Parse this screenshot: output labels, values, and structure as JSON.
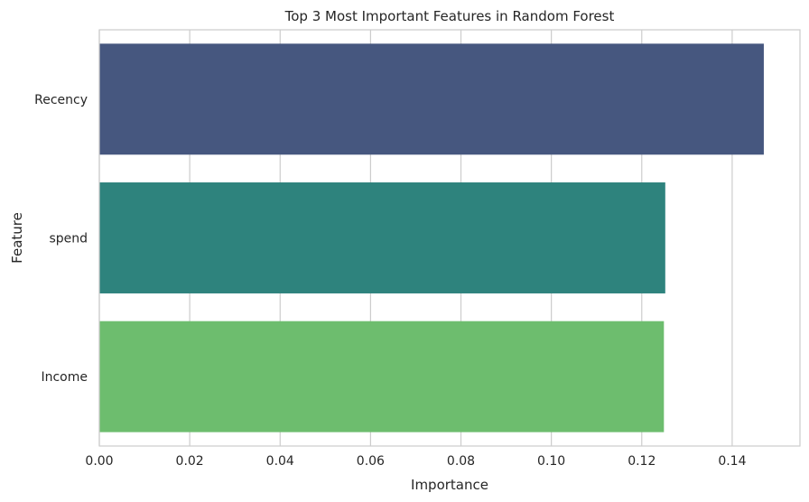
{
  "chart_data": {
    "type": "bar",
    "orientation": "horizontal",
    "title": "Top 3 Most Important Features in Random Forest",
    "xlabel": "Importance",
    "ylabel": "Feature",
    "categories": [
      "Recency",
      "spend",
      "Income"
    ],
    "values": [
      0.147,
      0.1252,
      0.1249
    ],
    "colors": [
      "#46577f",
      "#2e837d",
      "#6dbd6e"
    ],
    "xlim": [
      0,
      0.155
    ],
    "xticks": [
      0.0,
      0.02,
      0.04,
      0.06,
      0.08,
      0.1,
      0.12,
      0.14
    ],
    "xtick_labels": [
      "0.00",
      "0.02",
      "0.04",
      "0.06",
      "0.08",
      "0.10",
      "0.12",
      "0.14"
    ],
    "grid": "vertical",
    "legend": "none"
  }
}
